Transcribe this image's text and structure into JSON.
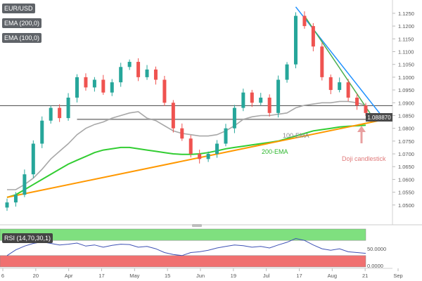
{
  "header": {
    "symbol": "EUR/USD",
    "indicators": [
      "EMA (200,0)",
      "EMA (100,0)"
    ]
  },
  "rsi_panel": {
    "label": "RSI (14,70,30,1)",
    "ticks": [
      "50.0000",
      "0.0000"
    ]
  },
  "price_tag": "1.088870",
  "annotations": {
    "ema100": "100-EMA",
    "ema200": "200-EMA",
    "doji": "Doji candlestick"
  },
  "colors": {
    "bull": "#26a69a",
    "bear": "#ef5350",
    "ema100": "#a8a8a8",
    "ema200": "#32cd32",
    "support_line": "#ff9800",
    "resistance_blue": "#1e90ff",
    "resistance_green": "#4caf50",
    "horizontal_line": "#999999",
    "rsi_line": "#3f51b5",
    "rsi_overbought_band": "#7fe07f",
    "rsi_oversold_band": "#f07070",
    "doji_arrow": "#e8a0a0"
  },
  "chart_data": {
    "type": "candlestick",
    "title": "",
    "xlabel": "",
    "ylabel": "",
    "ylim": [
      1.045,
      1.128
    ],
    "y_ticks": [
      "1.1250",
      "1.1200",
      "1.1150",
      "1.1100",
      "1.1050",
      "1.1000",
      "1.0950",
      "1.0900",
      "1.0850",
      "1.0800",
      "1.0750",
      "1.0700",
      "1.0650",
      "1.0600",
      "1.0550",
      "1.0500"
    ],
    "x_ticks": [
      "6",
      "20",
      "Apr",
      "17",
      "May",
      "15",
      "Jun",
      "19",
      "Jul",
      "17",
      "Aug",
      "21",
      "Sep"
    ],
    "close": [
      1.051,
      1.054,
      1.062,
      1.074,
      1.083,
      1.088,
      1.084,
      1.092,
      1.1,
      1.096,
      1.099,
      1.094,
      1.098,
      1.104,
      1.106,
      1.1,
      1.103,
      1.099,
      1.09,
      1.08,
      1.076,
      1.07,
      1.068,
      1.07,
      1.074,
      1.08,
      1.088,
      1.094,
      1.09,
      1.092,
      1.086,
      1.099,
      1.105,
      1.124,
      1.12,
      1.112,
      1.1,
      1.095,
      1.098,
      1.092,
      1.089,
      1.086
    ],
    "ema100": [
      1.056,
      1.056,
      1.058,
      1.0605,
      1.064,
      1.068,
      1.071,
      1.074,
      1.0775,
      1.08,
      1.0815,
      1.0825,
      1.084,
      1.085,
      1.086,
      1.0865,
      1.084,
      1.083,
      1.081,
      1.079,
      1.078,
      1.0775,
      1.077,
      1.077,
      1.0775,
      1.079,
      1.081,
      1.0835,
      1.0845,
      1.085,
      1.085,
      1.0855,
      1.086,
      1.088,
      1.089,
      1.0895,
      1.09,
      1.09,
      1.0905,
      1.0905,
      1.09,
      1.089
    ],
    "ema200": [
      1.053,
      1.054,
      1.056,
      1.058,
      1.06,
      1.062,
      1.064,
      1.066,
      1.0675,
      1.069,
      1.0705,
      1.0715,
      1.072,
      1.0725,
      1.0725,
      1.072,
      1.0715,
      1.071,
      1.0705,
      1.07,
      1.0698,
      1.0698,
      1.07,
      1.0705,
      1.0712,
      1.072,
      1.0725,
      1.073,
      1.0735,
      1.074,
      1.0745,
      1.075,
      1.076,
      1.077,
      1.078,
      1.079,
      1.0795,
      1.08,
      1.0805,
      1.0808,
      1.081,
      1.0812
    ],
    "rsi": [
      30,
      45,
      55,
      62,
      66,
      62,
      58,
      60,
      63,
      55,
      58,
      52,
      57,
      60,
      59,
      52,
      54,
      48,
      38,
      33,
      30,
      38,
      40,
      44,
      50,
      54,
      58,
      56,
      52,
      54,
      50,
      58,
      65,
      75,
      70,
      58,
      48,
      44,
      48,
      40,
      38,
      36
    ],
    "horizontal_level": 1.0835,
    "price_line": 1.08887,
    "trendlines": {
      "support": [
        [
          0,
          1.053
        ],
        [
          41,
          1.082
        ]
      ],
      "resistance_blue": [
        [
          33,
          1.1275
        ],
        [
          41,
          1.0895
        ]
      ],
      "resistance_green": [
        [
          34,
          1.124
        ],
        [
          41,
          1.0865
        ]
      ]
    },
    "rsi_ylim": [
      0,
      100
    ],
    "rsi_bands": [
      [
        70,
        100
      ],
      [
        0,
        30
      ]
    ]
  }
}
